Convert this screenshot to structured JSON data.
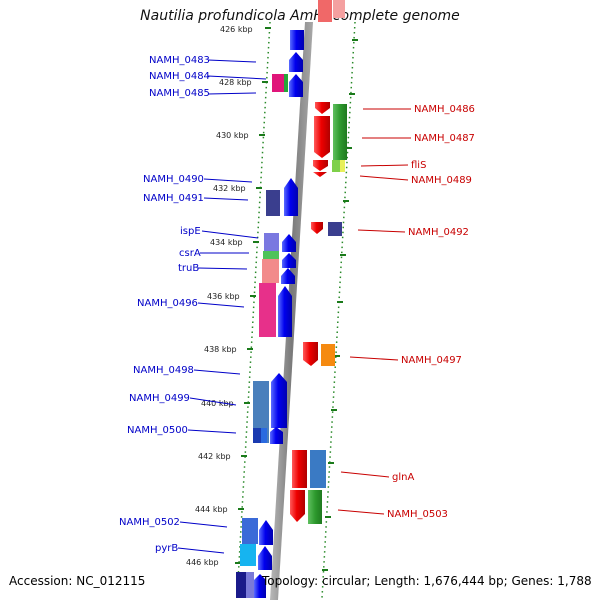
{
  "title": "Nautilia profundicola AmH, complete genome",
  "footer": {
    "accession": "Accession: NC_012115",
    "summary": "Topology: circular; Length: 1,676,444 bp; Genes: 1,788"
  },
  "colors": {
    "background": "#ffffff",
    "ruler_tick": "#1a7a1a",
    "backbone": "#8c8c8c",
    "left_label": "#0000c8",
    "right_label": "#c80000"
  },
  "ruler": {
    "first_tick_label": "426 kbp",
    "labels": [
      "428 kbp",
      "430 kbp",
      "432 kbp",
      "434 kbp",
      "436 kbp",
      "438 kbp",
      "440 kbp",
      "442 kbp",
      "444 kbp",
      "446 kbp"
    ]
  },
  "left_genes": [
    "NAMH_0483",
    "NAMH_0484",
    "NAMH_0485",
    "NAMH_0490",
    "NAMH_0491",
    "ispE",
    "csrA",
    "truB",
    "NAMH_0496",
    "NAMH_0498",
    "NAMH_0499",
    "NAMH_0500",
    "NAMH_0502",
    "pyrB"
  ],
  "right_genes": [
    "NAMH_0486",
    "NAMH_0487",
    "fliS",
    "NAMH_0489",
    "NAMH_0492",
    "NAMH_0497",
    "glnA",
    "NAMH_0503"
  ]
}
